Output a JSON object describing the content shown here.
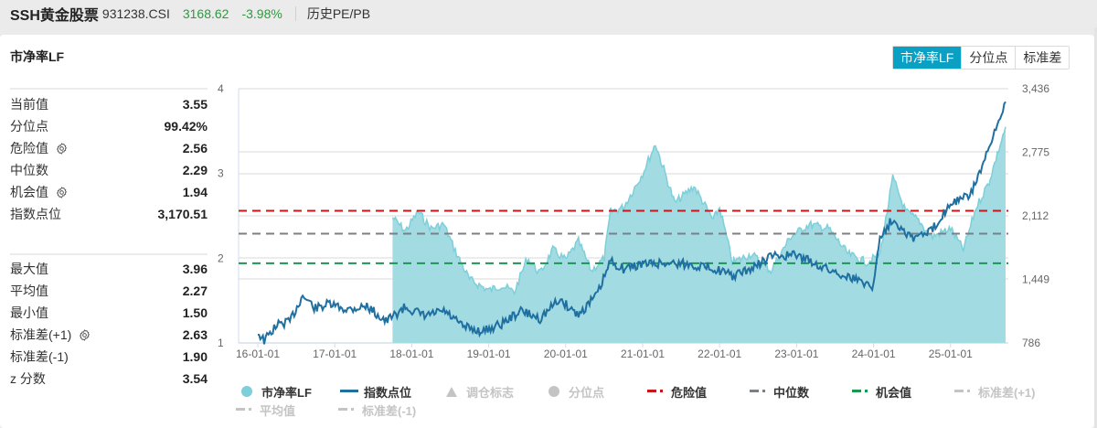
{
  "header": {
    "name": "SSH黄金股票",
    "code": "931238.CSI",
    "price": "3168.62",
    "change": "-3.98%",
    "history_link": "历史PE/PB",
    "up_down_color": "#2e9a3d"
  },
  "card": {
    "title": "市净率LF",
    "toggle": [
      {
        "label": "市净率LF",
        "active": true
      },
      {
        "label": "分位点",
        "active": false
      },
      {
        "label": "标准差",
        "active": false
      }
    ]
  },
  "stats_top": [
    {
      "label": "当前值",
      "value": "3.55",
      "gear": false
    },
    {
      "label": "分位点",
      "value": "99.42%",
      "gear": false
    },
    {
      "label": "危险值",
      "value": "2.56",
      "gear": true
    },
    {
      "label": "中位数",
      "value": "2.29",
      "gear": false
    },
    {
      "label": "机会值",
      "value": "1.94",
      "gear": true
    },
    {
      "label": "指数点位",
      "value": "3,170.51",
      "gear": false
    }
  ],
  "stats_bottom": [
    {
      "label": "最大值",
      "value": "3.96",
      "gear": false
    },
    {
      "label": "平均值",
      "value": "2.27",
      "gear": false
    },
    {
      "label": "最小值",
      "value": "1.50",
      "gear": false
    },
    {
      "label": "标准差(+1)",
      "value": "2.63",
      "gear": true
    },
    {
      "label": "标准差(-1)",
      "value": "1.90",
      "gear": false
    },
    {
      "label": "z 分数",
      "value": "3.54",
      "gear": false
    }
  ],
  "legend": {
    "row1": [
      {
        "label": "市净率LF",
        "type": "dot",
        "color": "#7dcfd9",
        "active": true
      },
      {
        "label": "指数点位",
        "type": "line",
        "color": "#1f6fa0",
        "active": true
      },
      {
        "label": "调仓标志",
        "type": "triangle",
        "color": "#c4c4c4",
        "active": false
      },
      {
        "label": "分位点",
        "type": "dot",
        "color": "#c4c4c4",
        "active": false
      },
      {
        "label": "危险值",
        "type": "dash",
        "color": "#c8161d",
        "active": true
      },
      {
        "label": "中位数",
        "type": "dash",
        "color": "#7c7f86",
        "active": true
      },
      {
        "label": "机会值",
        "type": "dash",
        "color": "#1a9850",
        "active": true
      },
      {
        "label": "标准差(+1)",
        "type": "dash",
        "color": "#c4c4c4",
        "active": false
      }
    ],
    "row2": [
      {
        "label": "平均值",
        "type": "dash",
        "color": "#c4c4c4",
        "active": false
      },
      {
        "label": "标准差(-1)",
        "type": "dash",
        "color": "#c4c4c4",
        "active": false
      }
    ]
  },
  "chart_data": {
    "type": "line",
    "title": "市净率LF",
    "x_ticks": [
      "16-01-01",
      "17-01-01",
      "18-01-01",
      "19-01-01",
      "20-01-01",
      "21-01-01",
      "22-01-01",
      "23-01-01",
      "24-01-01",
      "25-01-01"
    ],
    "y_left": {
      "ticks": [
        "1",
        "2",
        "3",
        "4"
      ],
      "range": [
        1,
        4
      ],
      "label": "市净率LF"
    },
    "y_right": {
      "ticks": [
        "786",
        "1,449",
        "2,112",
        "2,775",
        "3,436"
      ],
      "range": [
        786,
        3436
      ],
      "label": "指数点位"
    },
    "reference_lines": [
      {
        "name": "危险值",
        "value": 2.56,
        "color": "#c8161d"
      },
      {
        "name": "中位数",
        "value": 2.29,
        "color": "#7c7f86"
      },
      {
        "name": "机会值",
        "value": 1.94,
        "color": "#1a9850"
      }
    ],
    "series": [
      {
        "name": "市净率LF",
        "type": "area",
        "axis": "left",
        "color": "#7dcfd9",
        "fill": "#a2dbe2",
        "x": [
          "17-10",
          "17-12",
          "18-02",
          "18-04",
          "18-06",
          "18-08",
          "18-10",
          "19-01",
          "19-03",
          "19-05",
          "19-07",
          "19-09",
          "19-11",
          "20-01",
          "20-03",
          "20-05",
          "20-07",
          "20-08",
          "20-10",
          "21-01",
          "21-03",
          "21-06",
          "21-09",
          "21-12",
          "22-01",
          "22-03",
          "22-06",
          "22-09",
          "22-12",
          "23-03",
          "23-06",
          "23-09",
          "23-12",
          "24-02",
          "24-04",
          "24-06",
          "24-08",
          "24-10",
          "25-01",
          "25-03",
          "25-05",
          "25-07",
          "25-09"
        ],
        "values": [
          2.48,
          2.32,
          2.55,
          2.35,
          2.4,
          2.05,
          1.75,
          1.62,
          1.68,
          1.6,
          2.0,
          1.82,
          2.1,
          1.98,
          2.2,
          1.85,
          2.0,
          2.55,
          2.6,
          3.0,
          3.35,
          2.65,
          2.85,
          2.45,
          2.6,
          1.95,
          2.05,
          1.85,
          2.25,
          2.4,
          2.35,
          2.05,
          1.95,
          2.05,
          2.95,
          2.55,
          2.45,
          2.25,
          2.35,
          2.1,
          2.6,
          2.9,
          3.55
        ]
      },
      {
        "name": "指数点位",
        "type": "line",
        "axis": "right",
        "color": "#1f6fa0",
        "x": [
          "16-01",
          "16-02",
          "16-04",
          "16-06",
          "16-08",
          "16-10",
          "16-12",
          "17-03",
          "17-06",
          "17-09",
          "17-12",
          "18-03",
          "18-06",
          "18-09",
          "18-12",
          "19-03",
          "19-06",
          "19-09",
          "19-12",
          "20-03",
          "20-06",
          "20-08",
          "20-10",
          "21-01",
          "21-06",
          "21-12",
          "22-03",
          "22-06",
          "22-09",
          "23-01",
          "23-06",
          "23-09",
          "24-01",
          "24-02",
          "24-04",
          "24-07",
          "24-10",
          "25-01",
          "25-04",
          "25-07",
          "25-09"
        ],
        "values": [
          895,
          810,
          975,
          1010,
          1280,
          1145,
          1190,
          1135,
          1170,
          1010,
          1160,
          1065,
          1120,
          955,
          905,
          985,
          1120,
          1040,
          1240,
          1080,
          1300,
          1640,
          1560,
          1610,
          1620,
          1570,
          1480,
          1560,
          1690,
          1700,
          1550,
          1480,
          1380,
          1900,
          2080,
          1880,
          1950,
          2250,
          2320,
          2800,
          3300
        ]
      }
    ]
  }
}
